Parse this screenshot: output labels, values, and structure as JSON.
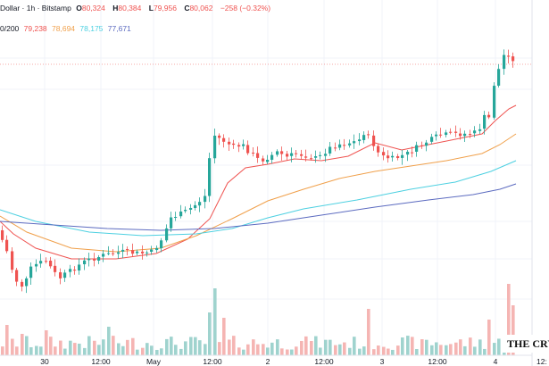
{
  "header": {
    "title": "Dollar · 1h · Bitstamp",
    "open_label": "O",
    "open": "80,324",
    "high_label": "H",
    "high": "80,384",
    "low_label": "L",
    "low": "79,956",
    "close_label": "C",
    "close": "80,062",
    "change": "−258 (−0.32%)"
  },
  "indicators": {
    "label": "0/200",
    "values": [
      "79,238",
      "78,694",
      "78,175",
      "77,671"
    ]
  },
  "x_axis": {
    "labels": [
      "30",
      "12:00",
      "May",
      "12:00",
      "2",
      "12:00",
      "3",
      "12:00",
      "4",
      "12:"
    ]
  },
  "watermark": "THE CRYP",
  "colors": {
    "up": "#26a69a",
    "down": "#ef5350",
    "ma1": "#ef5350",
    "ma2": "#f0a04b",
    "ma3": "#4dd0e1",
    "ma4": "#5c6bc0",
    "vol_up": "#9fd3ce",
    "vol_down": "#f5b5b3"
  }
}
